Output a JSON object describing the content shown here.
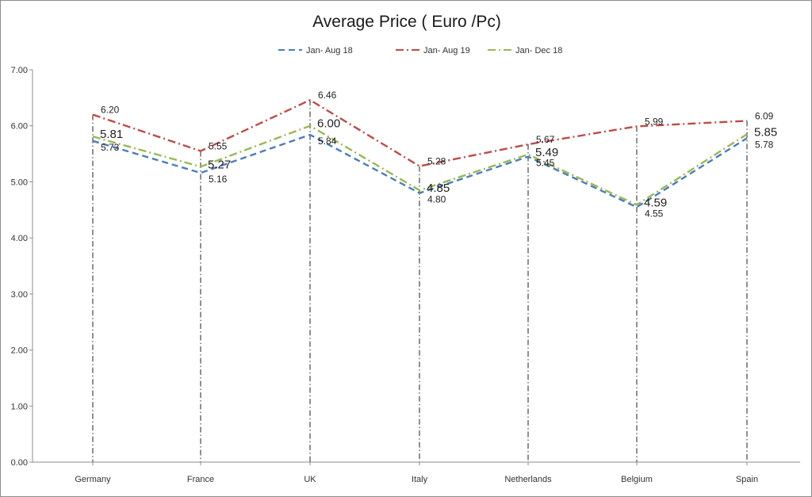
{
  "chart_data": {
    "type": "line",
    "title": "Average Price ( Euro /Pc)",
    "xlabel": "",
    "ylabel": "",
    "categories": [
      "Germany",
      "France",
      "UK",
      "Italy",
      "Netherlands",
      "Belgium",
      "Spain"
    ],
    "ylim": [
      0,
      7
    ],
    "yticks": [
      "0.00",
      "1.00",
      "2.00",
      "3.00",
      "4.00",
      "5.00",
      "6.00",
      "7.00"
    ],
    "grid": "vertical dash-dot drop lines at each category",
    "legend_position": "top",
    "series": [
      {
        "name": "Jan- Aug 18",
        "values": [
          5.73,
          5.16,
          5.84,
          4.8,
          5.45,
          4.55,
          5.78
        ],
        "labels": [
          "5.73",
          "5.16",
          "5.84",
          "4.80",
          "5.45",
          "4.55",
          "5.78"
        ],
        "color": "#4a7ebb",
        "dash": "dashed"
      },
      {
        "name": "Jan- Aug 19",
        "values": [
          6.2,
          5.55,
          6.46,
          5.28,
          5.67,
          5.99,
          6.09
        ],
        "labels": [
          "6.20",
          "5.55",
          "6.46",
          "5.28",
          "5.67",
          "5.99",
          "6.09"
        ],
        "color": "#be4b48",
        "dash": "dash-dot"
      },
      {
        "name": "Jan- Dec 18",
        "values": [
          5.81,
          5.27,
          6.0,
          4.85,
          5.49,
          4.59,
          5.85
        ],
        "labels": [
          "5.81",
          "5.27",
          "6.00",
          "4.85",
          "5.49",
          "4.59",
          "5.85"
        ],
        "color": "#98b954",
        "dash": "dash-dot"
      }
    ]
  }
}
